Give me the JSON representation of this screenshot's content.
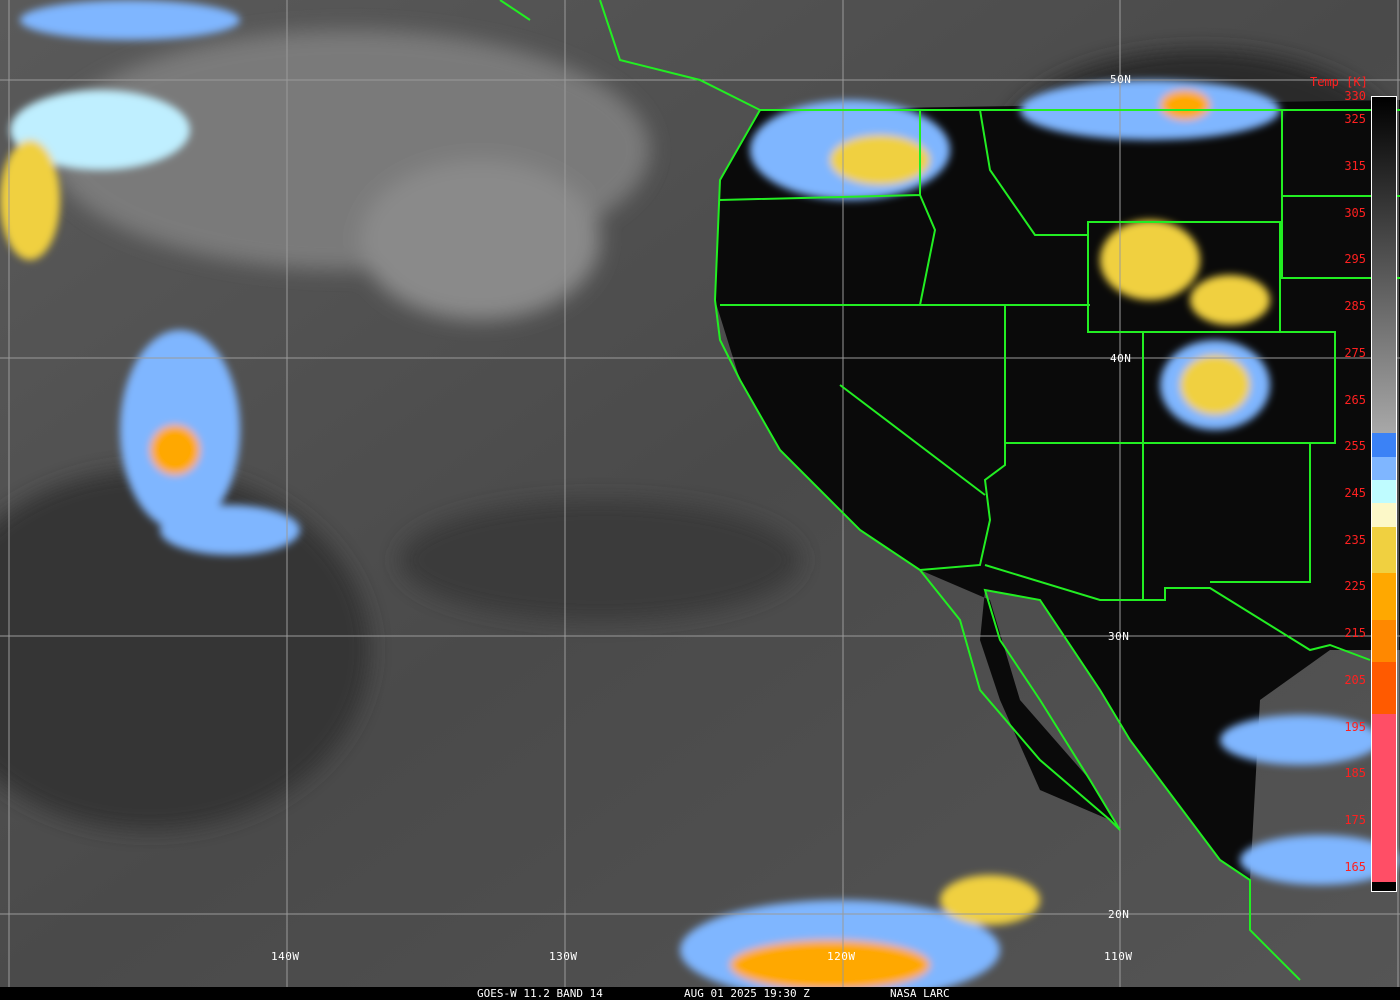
{
  "caption": {
    "sensor": "GOES-W 11.2 BAND 14",
    "datetime": "AUG 01 2025 19:30 Z",
    "source": "NASA LARC"
  },
  "lat_labels": [
    "50N",
    "40N",
    "30N",
    "20N"
  ],
  "lon_labels": [
    "140W",
    "130W",
    "120W",
    "110W"
  ],
  "colors": {
    "borders": "#22ee22",
    "grid": "#9a9a9a",
    "labels": "#ff2020"
  },
  "colorbar": {
    "title": "Temp [K]",
    "range": [
      160,
      330
    ],
    "tick_labels": [
      "330",
      "325",
      "315",
      "305",
      "295",
      "285",
      "275",
      "265",
      "255",
      "245",
      "235",
      "225",
      "215",
      "205",
      "195",
      "185",
      "175",
      "165"
    ],
    "segments": [
      {
        "from": 330,
        "to": 258,
        "color": "gradient #000000 to #a8a8a8"
      },
      {
        "from": 258,
        "to": 253,
        "color": "#3b82f6"
      },
      {
        "from": 253,
        "to": 248,
        "color": "#7fb6ff"
      },
      {
        "from": 248,
        "to": 243,
        "color": "#bffcff"
      },
      {
        "from": 243,
        "to": 238,
        "color": "#fcf8c8"
      },
      {
        "from": 238,
        "to": 228,
        "color": "#f0d040"
      },
      {
        "from": 228,
        "to": 218,
        "color": "#ffa800"
      },
      {
        "from": 218,
        "to": 209,
        "color": "#ff8800"
      },
      {
        "from": 209,
        "to": 198,
        "color": "#ff5a00"
      },
      {
        "from": 198,
        "to": 162,
        "color": "#ff4e66"
      },
      {
        "from": 162,
        "to": 160,
        "color": "#000000"
      }
    ]
  }
}
